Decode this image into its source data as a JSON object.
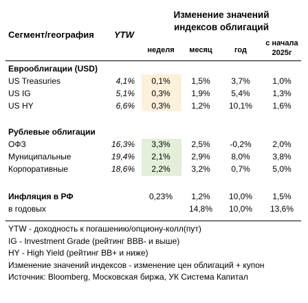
{
  "header": {
    "segment": "Сегмент/география",
    "ytw": "YTW",
    "change_title": "Изменение значений индексов облигаций",
    "periods": [
      "неделя",
      "месяц",
      "год",
      "с начала 2025г"
    ]
  },
  "sections": [
    {
      "title": "Еврооблигации (USD)",
      "rows": [
        [
          "US Treasuries",
          "4,1%",
          "0,1%",
          "1,5%",
          "3,7%",
          "1,0%"
        ],
        [
          "US IG",
          "5,1%",
          "0,3%",
          "1,9%",
          "5,4%",
          "1,3%"
        ],
        [
          "US HY",
          "6,6%",
          "0,3%",
          "1,2%",
          "10,1%",
          "1,6%"
        ]
      ]
    },
    {
      "title": "Рублевые облигации",
      "rows": [
        [
          "ОФЗ",
          "16,3%",
          "3,3%",
          "2,5%",
          "-0,2%",
          "2,0%"
        ],
        [
          "Муниципальные",
          "19,4%",
          "2,1%",
          "2,9%",
          "8,0%",
          "3,8%"
        ],
        [
          "Корпоративные",
          "18,6%",
          "2,2%",
          "3,2%",
          "0,7%",
          "5,0%"
        ]
      ]
    }
  ],
  "inflation": {
    "rows": [
      [
        "Инфляция в РФ",
        null,
        "0,23%",
        "1,2%",
        "10,0%",
        "1,5%"
      ],
      [
        "в годовых",
        null,
        null,
        "14,8%",
        "10,0%",
        "13,6%"
      ]
    ]
  },
  "notes": [
    "YTW - доходность к погашению/опциону-колл(пут)",
    "IG - Investment Grade (рейтинг BBB- и выше)",
    "HY - High Yield (рейтинг BB+ и ниже)",
    "Изменение значений индексов - изменение цен облигаций + купон",
    "Источник: Bloomberg, Московская биржа, УК Система Капитал"
  ]
}
